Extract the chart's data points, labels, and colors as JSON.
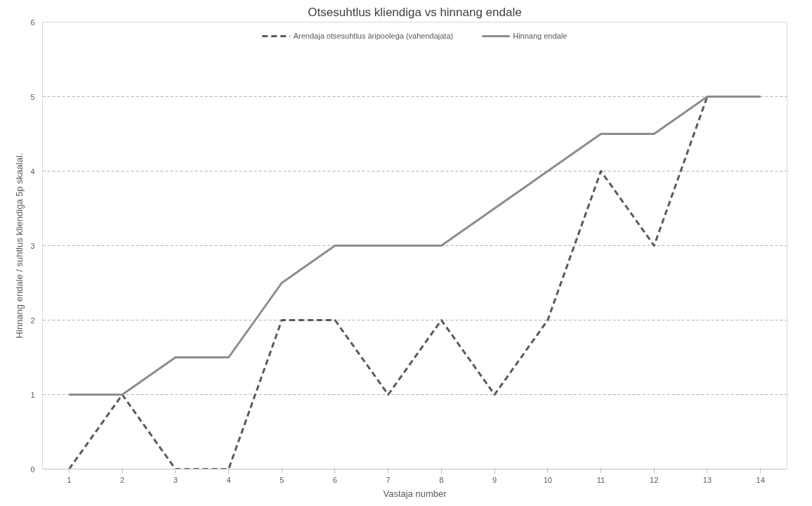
{
  "chart_data": {
    "type": "line",
    "title": "Otsesuhtlus kliendiga vs hinnang endale",
    "xlabel": "Vastaja number",
    "ylabel": "Hinnang endale / suhtlus kliendiga 5p skaalal.",
    "categories": [
      "1",
      "2",
      "3",
      "4",
      "5",
      "6",
      "7",
      "8",
      "9",
      "10",
      "11",
      "12",
      "13",
      "14"
    ],
    "series": [
      {
        "name": "Arendaja otsesuhtlus äripoolega (vahendajata)",
        "color": "#595959",
        "line_style": "dashed",
        "values": [
          0,
          1,
          0,
          0,
          2,
          2,
          1,
          2,
          1,
          2,
          4,
          3,
          5,
          5
        ]
      },
      {
        "name": "Hinnang endale",
        "color": "#8c8c8c",
        "line_style": "solid",
        "values": [
          1,
          1,
          1.5,
          1.5,
          2.5,
          3,
          3,
          3,
          3.5,
          4,
          4.5,
          4.5,
          5,
          5
        ]
      }
    ],
    "ylim": [
      0,
      6
    ],
    "yticks": [
      0,
      1,
      2,
      3,
      4,
      5,
      6
    ],
    "grid": "y",
    "legend": "top",
    "marker": "none"
  }
}
